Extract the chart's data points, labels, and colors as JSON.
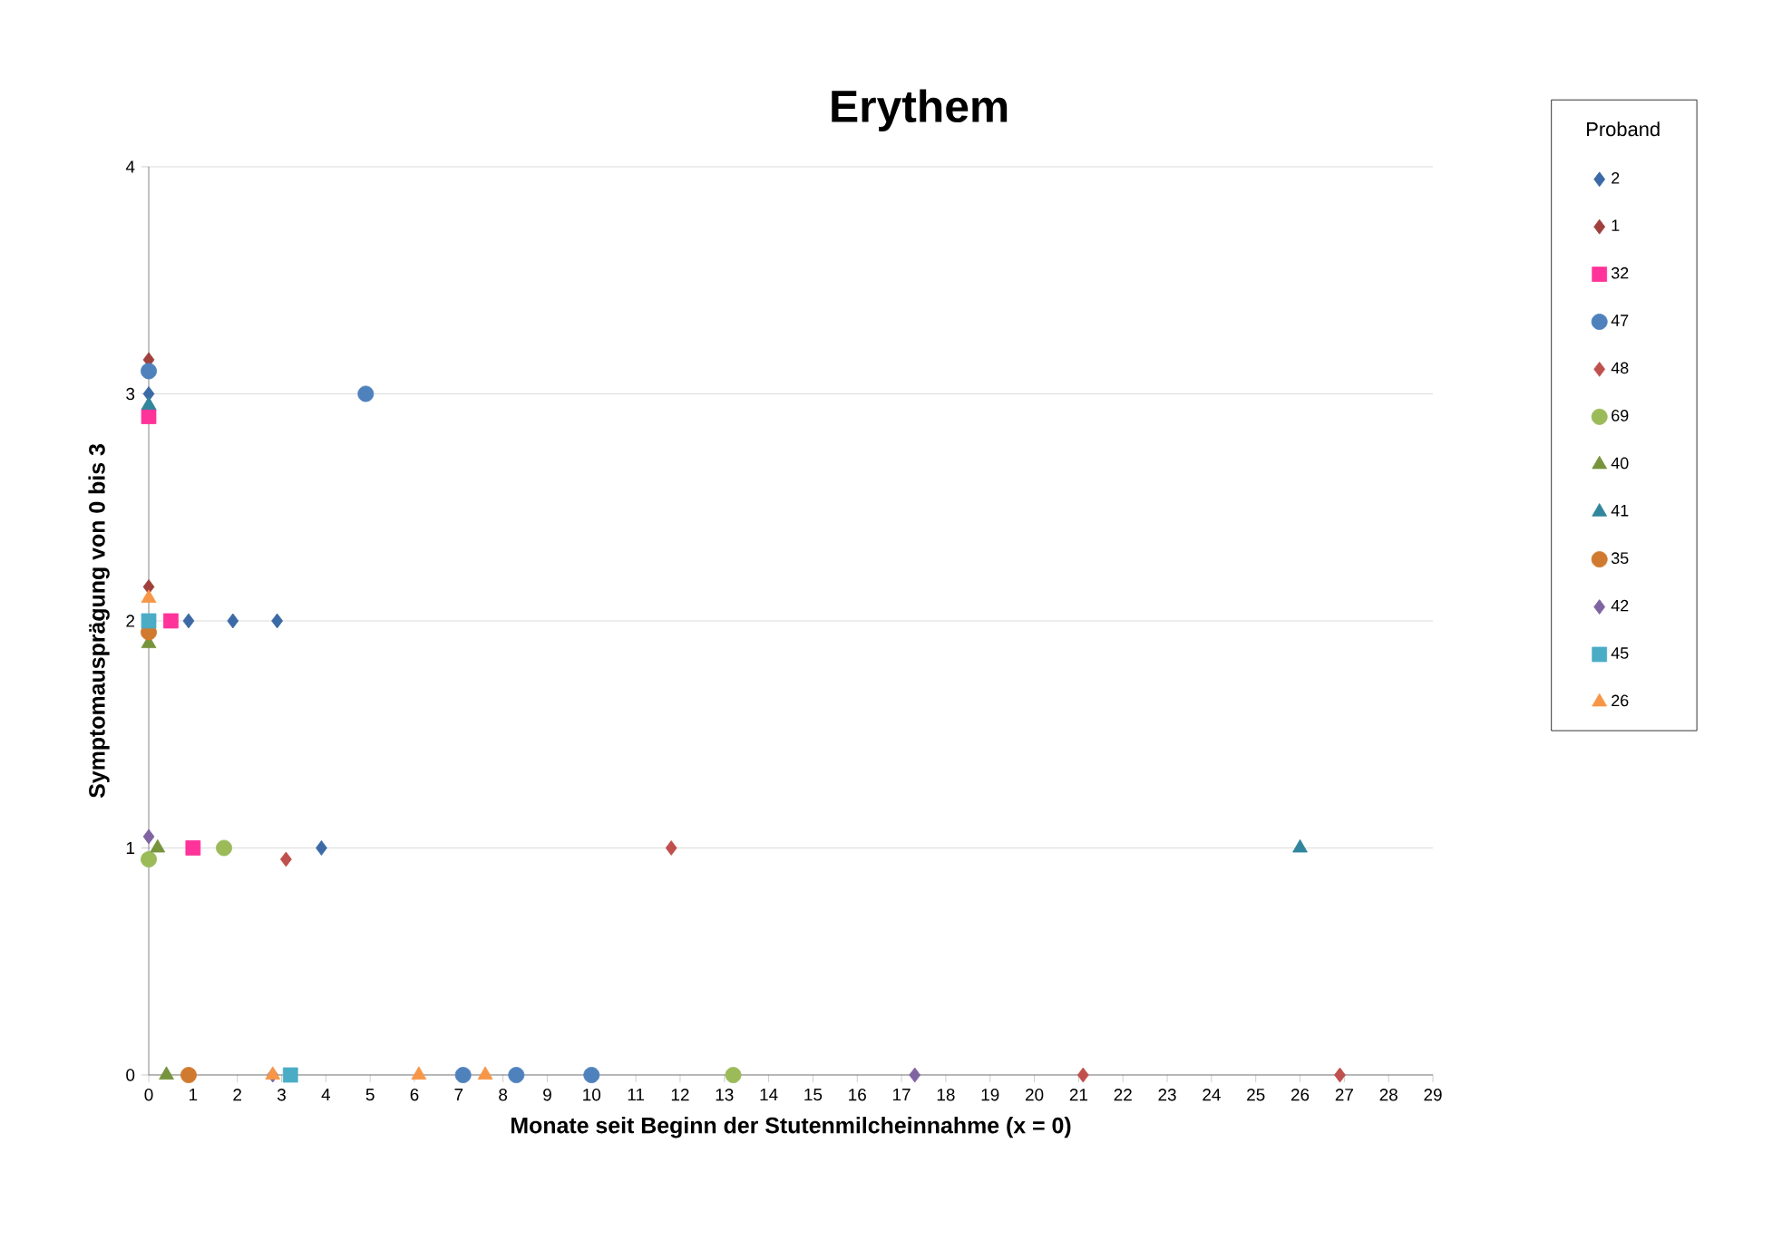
{
  "chart_data": {
    "type": "scatter",
    "title": "Erythem",
    "xlabel": "Monate seit Beginn der Stutenmilcheinnahme (x = 0)",
    "ylabel": "Symptomausprägung von 0 bis 3",
    "legend_title": "Proband",
    "xlim": [
      0,
      29
    ],
    "xticks": [
      0,
      1,
      2,
      3,
      4,
      5,
      6,
      7,
      8,
      9,
      10,
      11,
      12,
      13,
      14,
      15,
      16,
      17,
      18,
      19,
      20,
      21,
      22,
      23,
      24,
      25,
      26,
      27,
      28,
      29
    ],
    "ylim": [
      0,
      4
    ],
    "yticks": [
      0,
      1,
      2,
      3,
      4
    ],
    "grid": "y",
    "legend": "right",
    "series": [
      {
        "name": "2",
        "color": "#3c6aa6",
        "marker": "diamond",
        "x": [
          0,
          0.9,
          1.9,
          2.9,
          3.9
        ],
        "values": [
          3,
          2,
          2,
          2,
          1
        ]
      },
      {
        "name": "1",
        "color": "#a0403c",
        "marker": "diamond",
        "x": [
          0,
          0
        ],
        "values": [
          3.15,
          2.15
        ]
      },
      {
        "name": "32",
        "color": "#ff3399",
        "marker": "square",
        "x": [
          0,
          0.5,
          1.0
        ],
        "values": [
          2.9,
          2,
          1
        ]
      },
      {
        "name": "47",
        "color": "#4f81bd",
        "marker": "circle",
        "x": [
          0,
          4.9,
          7.1,
          8.3,
          10.0
        ],
        "values": [
          3.1,
          3,
          0,
          0,
          0
        ]
      },
      {
        "name": "48",
        "color": "#c0504d",
        "marker": "diamond",
        "x": [
          3.1,
          11.8,
          21.1,
          26.9
        ],
        "values": [
          0.95,
          1,
          0,
          0
        ]
      },
      {
        "name": "69",
        "color": "#9bbb59",
        "marker": "circle",
        "x": [
          0,
          1.7,
          13.2
        ],
        "values": [
          0.95,
          1,
          0
        ]
      },
      {
        "name": "40",
        "color": "#77933c",
        "marker": "triangle",
        "x": [
          0,
          0.2,
          0.4
        ],
        "values": [
          1.9,
          1,
          0
        ]
      },
      {
        "name": "41",
        "color": "#31859c",
        "marker": "triangle",
        "x": [
          0,
          26.0
        ],
        "values": [
          2.95,
          1
        ]
      },
      {
        "name": "35",
        "color": "#d07a2f",
        "marker": "circle",
        "x": [
          0,
          0.9
        ],
        "values": [
          1.95,
          0
        ]
      },
      {
        "name": "42",
        "color": "#8064a2",
        "marker": "diamond",
        "x": [
          0,
          2.8,
          17.3
        ],
        "values": [
          1.05,
          0,
          0
        ]
      },
      {
        "name": "45",
        "color": "#4bacc6",
        "marker": "square",
        "x": [
          0,
          3.2
        ],
        "values": [
          2,
          0
        ]
      },
      {
        "name": "26",
        "color": "#f79646",
        "marker": "triangle",
        "x": [
          0,
          2.8,
          6.1,
          7.6
        ],
        "values": [
          2.1,
          0,
          0,
          0
        ]
      }
    ]
  }
}
